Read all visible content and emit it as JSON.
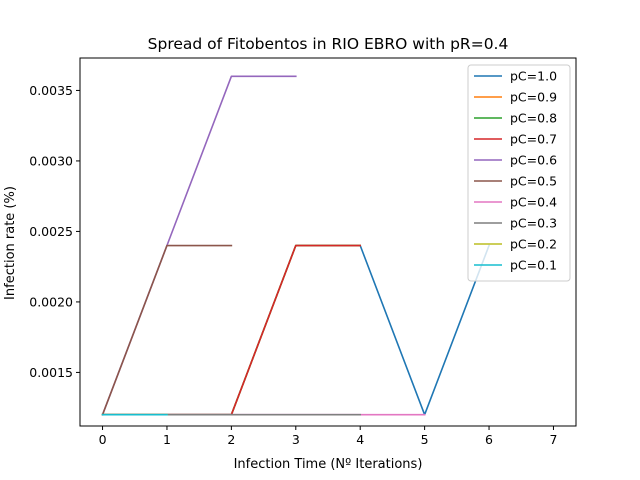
{
  "chart_data": {
    "type": "line",
    "title": "Spread of Fitobentos in RIO EBRO with pR=0.4",
    "xlabel": "Infection Time (Nº Iterations)",
    "ylabel": "Infection rate (%)",
    "xlim": [
      -0.35,
      7.35
    ],
    "ylim": [
      0.00112,
      0.00373
    ],
    "xticks": [
      0,
      1,
      2,
      3,
      4,
      5,
      6,
      7
    ],
    "xtick_labels": [
      "0",
      "1",
      "2",
      "3",
      "4",
      "5",
      "6",
      "7"
    ],
    "yticks": [
      0.0015,
      0.002,
      0.0025,
      0.003,
      0.0035
    ],
    "ytick_labels": [
      "0.0015",
      "0.0020",
      "0.0025",
      "0.0030",
      "0.0035"
    ],
    "grid": false,
    "legend_position": "top-right",
    "series": [
      {
        "name": "pC=1.0",
        "color": "#1f77b4",
        "x": [
          0,
          1,
          2,
          3,
          4,
          5,
          6
        ],
        "y": [
          0.0012,
          0.0012,
          0.0012,
          0.0024,
          0.0024,
          0.0012,
          0.0024
        ]
      },
      {
        "name": "pC=0.9",
        "color": "#ff7f0e",
        "x": [
          0,
          1,
          2,
          3,
          4
        ],
        "y": [
          0.0012,
          0.0012,
          0.0012,
          0.0024,
          0.0024
        ]
      },
      {
        "name": "pC=0.8",
        "color": "#2ca02c",
        "x": [
          0,
          1,
          2,
          3,
          4
        ],
        "y": [
          0.0012,
          0.0012,
          0.0012,
          0.0024,
          0.0024
        ]
      },
      {
        "name": "pC=0.7",
        "color": "#d62728",
        "x": [
          0,
          1,
          2,
          3,
          4
        ],
        "y": [
          0.0012,
          0.0012,
          0.0012,
          0.0024,
          0.0024
        ]
      },
      {
        "name": "pC=0.6",
        "color": "#9467bd",
        "x": [
          0,
          1,
          2,
          3
        ],
        "y": [
          0.0012,
          0.0024,
          0.0036,
          0.0036
        ]
      },
      {
        "name": "pC=0.5",
        "color": "#8c564b",
        "x": [
          0,
          1,
          2
        ],
        "y": [
          0.0012,
          0.0024,
          0.0024
        ]
      },
      {
        "name": "pC=0.4",
        "color": "#e377c2",
        "x": [
          0,
          1,
          2,
          3,
          4,
          5
        ],
        "y": [
          0.0012,
          0.0012,
          0.0012,
          0.0012,
          0.0012,
          0.0012
        ]
      },
      {
        "name": "pC=0.3",
        "color": "#7f7f7f",
        "x": [
          0,
          1,
          2,
          3,
          4
        ],
        "y": [
          0.0012,
          0.0012,
          0.0012,
          0.0012,
          0.0012
        ]
      },
      {
        "name": "pC=0.2",
        "color": "#bcbd22",
        "x": [
          0,
          1
        ],
        "y": [
          0.0012,
          0.0012
        ]
      },
      {
        "name": "pC=0.1",
        "color": "#17becf",
        "x": [
          0,
          1
        ],
        "y": [
          0.0012,
          0.0012
        ]
      }
    ]
  }
}
